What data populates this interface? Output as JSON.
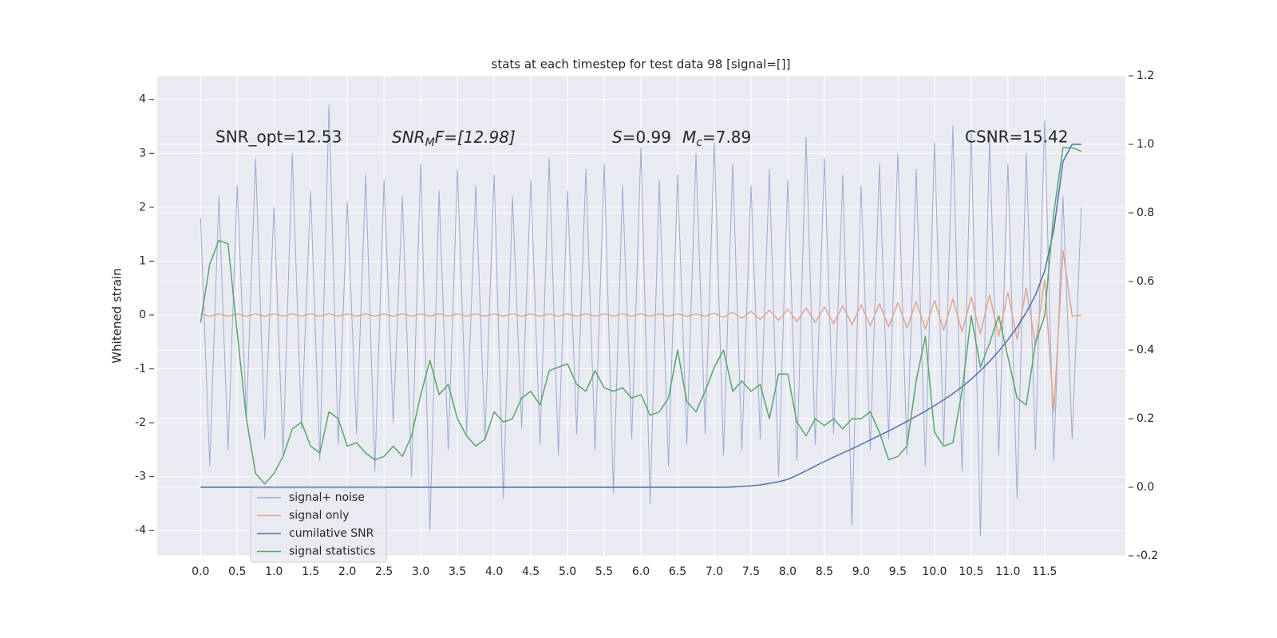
{
  "chart_data": {
    "type": "line",
    "title": "stats at each timestep for test data 98 [signal=[]]",
    "ylabel": "Whitened strain",
    "grid": true,
    "legend_loc": "lower left",
    "x": [
      0,
      0.125,
      0.25,
      0.375,
      0.5,
      0.625,
      0.75,
      0.875,
      1,
      1.125,
      1.25,
      1.375,
      1.5,
      1.625,
      1.75,
      1.875,
      2,
      2.125,
      2.25,
      2.375,
      2.5,
      2.625,
      2.75,
      2.875,
      3,
      3.125,
      3.25,
      3.375,
      3.5,
      3.625,
      3.75,
      3.875,
      4,
      4.125,
      4.25,
      4.375,
      4.5,
      4.625,
      4.75,
      4.875,
      5,
      5.125,
      5.25,
      5.375,
      5.5,
      5.625,
      5.75,
      5.875,
      6,
      6.125,
      6.25,
      6.375,
      6.5,
      6.625,
      6.75,
      6.875,
      7,
      7.125,
      7.25,
      7.375,
      7.5,
      7.625,
      7.75,
      7.875,
      8,
      8.125,
      8.25,
      8.375,
      8.5,
      8.625,
      8.75,
      8.875,
      9,
      9.125,
      9.25,
      9.375,
      9.5,
      9.625,
      9.75,
      9.875,
      10,
      10.125,
      10.25,
      10.375,
      10.5,
      10.625,
      10.75,
      10.875,
      11,
      11.125,
      11.25,
      11.375,
      11.5,
      11.625,
      11.75,
      11.875,
      12
    ],
    "xlim": [
      -0.59,
      12.6
    ],
    "xticks": [
      {
        "value": 0,
        "label": "0.0"
      },
      0.5,
      {
        "value": 1,
        "label": "1.0"
      },
      1.5,
      {
        "value": 2,
        "label": "2.0"
      },
      2.5,
      {
        "value": 3,
        "label": "3.0"
      },
      3.5,
      {
        "value": 4,
        "label": "4.0"
      },
      4.5,
      {
        "value": 5,
        "label": "5.0"
      },
      5.5,
      {
        "value": 6,
        "label": "6.0"
      },
      6.5,
      {
        "value": 7,
        "label": "7.0"
      },
      7.5,
      {
        "value": 8,
        "label": "8.0"
      },
      8.5,
      {
        "value": 9,
        "label": "9.0"
      },
      9.5,
      {
        "value": 10,
        "label": "10.0"
      },
      10.5,
      {
        "value": 11,
        "label": "11.0"
      },
      11.5
    ],
    "ylim": [
      -4.47,
      4.44
    ],
    "yticks": [
      -4,
      -3,
      -2,
      -1,
      0,
      1,
      2,
      3,
      4
    ],
    "y2lim": [
      -0.2,
      1.2
    ],
    "y2ticks": [
      -0.2,
      {
        "value": 0,
        "label": "0.0"
      },
      0.2,
      0.4,
      0.6,
      0.8,
      {
        "value": 1,
        "label": "1.0"
      },
      1.2
    ],
    "series": [
      {
        "name": "signal+ noise",
        "color": "#9aabd1",
        "values": [
          1.8,
          -2.8,
          2.2,
          -2.5,
          2.4,
          -1.9,
          2.9,
          -2.3,
          2.0,
          -2.6,
          3.0,
          -2.1,
          2.3,
          -2.7,
          3.9,
          -2.4,
          2.1,
          -2.2,
          2.6,
          -2.9,
          2.5,
          -2.0,
          2.2,
          -3.0,
          2.8,
          -4.0,
          2.3,
          -2.5,
          2.7,
          -2.2,
          2.4,
          -2.3,
          2.6,
          -3.4,
          2.2,
          -2.1,
          2.5,
          -2.4,
          2.9,
          -2.6,
          2.3,
          -2.2,
          2.7,
          -2.5,
          2.8,
          -3.3,
          2.4,
          -2.3,
          3.1,
          -3.5,
          2.5,
          -2.8,
          2.6,
          -2.4,
          3.0,
          -2.2,
          3.2,
          -2.6,
          2.8,
          -2.5,
          2.4,
          -2.3,
          2.7,
          -3.0,
          2.5,
          -2.7,
          3.3,
          -2.4,
          2.9,
          -2.2,
          2.6,
          -3.9,
          2.4,
          -2.5,
          2.8,
          -2.3,
          3.0,
          -2.6,
          2.7,
          -2.8,
          3.2,
          -2.4,
          3.5,
          -2.9,
          3.4,
          -4.1,
          3.3,
          -2.6,
          2.8,
          -3.4,
          3.0,
          -2.5,
          3.6,
          -2.7,
          2.2,
          -2.3,
          2.0
        ]
      },
      {
        "name": "signal only",
        "color": "#e0a58e",
        "values": [
          0.02,
          -0.02,
          0.02,
          -0.02,
          0.02,
          -0.02,
          0.02,
          -0.02,
          0.02,
          -0.02,
          0.02,
          -0.02,
          0.02,
          -0.02,
          0.02,
          -0.02,
          0.02,
          -0.02,
          0.02,
          -0.02,
          0.02,
          -0.02,
          0.02,
          -0.02,
          0.02,
          -0.02,
          0.02,
          -0.02,
          0.02,
          -0.02,
          0.02,
          -0.02,
          0.02,
          -0.02,
          0.02,
          -0.02,
          0.02,
          -0.02,
          0.02,
          -0.02,
          0.02,
          -0.02,
          0.02,
          -0.02,
          0.02,
          -0.02,
          0.02,
          -0.02,
          0.02,
          -0.02,
          0.02,
          -0.02,
          0.02,
          -0.02,
          0.02,
          -0.02,
          0.03,
          -0.04,
          0.05,
          -0.06,
          0.07,
          -0.08,
          0.09,
          -0.1,
          0.11,
          -0.12,
          0.13,
          -0.14,
          0.15,
          -0.16,
          0.17,
          -0.18,
          0.19,
          -0.2,
          0.21,
          -0.22,
          0.23,
          -0.24,
          0.25,
          -0.26,
          0.27,
          -0.28,
          0.3,
          -0.31,
          0.33,
          -0.35,
          0.37,
          -0.39,
          0.42,
          -0.45,
          0.5,
          -0.56,
          0.65,
          -1.8,
          1.2,
          -0.02,
          0
        ]
      },
      {
        "name": "cumilative SNR",
        "color": "#4c72b0",
        "axis": "y2",
        "values": [
          0,
          0,
          0,
          0,
          0,
          0,
          0,
          0,
          0,
          0,
          0,
          0,
          0,
          0,
          0,
          0,
          0,
          0,
          0,
          0,
          0,
          0,
          0,
          0,
          0,
          0,
          0,
          0,
          0,
          0,
          0,
          0,
          0,
          0,
          0,
          0,
          0,
          0,
          0,
          0,
          0,
          0,
          0,
          0,
          0,
          0,
          0,
          0,
          0,
          0,
          0,
          0,
          0,
          0,
          0,
          0,
          0,
          0,
          0.001,
          0.002,
          0.004,
          0.007,
          0.011,
          0.016,
          0.023,
          0.035,
          0.048,
          0.062,
          0.075,
          0.088,
          0.1,
          0.112,
          0.125,
          0.138,
          0.151,
          0.164,
          0.178,
          0.192,
          0.207,
          0.222,
          0.238,
          0.255,
          0.273,
          0.293,
          0.315,
          0.34,
          0.367,
          0.397,
          0.43,
          0.467,
          0.51,
          0.56,
          0.63,
          0.75,
          0.95,
          1.0,
          1.0
        ]
      },
      {
        "name": "signal statistics",
        "color": "#55a868",
        "axis": "y2",
        "values": [
          0.48,
          0.65,
          0.72,
          0.71,
          0.45,
          0.2,
          0.04,
          0.01,
          0.04,
          0.09,
          0.17,
          0.19,
          0.12,
          0.1,
          0.22,
          0.2,
          0.12,
          0.13,
          0.1,
          0.08,
          0.09,
          0.12,
          0.09,
          0.15,
          0.27,
          0.37,
          0.27,
          0.3,
          0.2,
          0.15,
          0.12,
          0.14,
          0.22,
          0.19,
          0.2,
          0.26,
          0.28,
          0.24,
          0.34,
          0.35,
          0.36,
          0.3,
          0.28,
          0.34,
          0.29,
          0.28,
          0.29,
          0.26,
          0.27,
          0.21,
          0.22,
          0.26,
          0.4,
          0.25,
          0.22,
          0.28,
          0.35,
          0.4,
          0.28,
          0.31,
          0.28,
          0.3,
          0.2,
          0.33,
          0.33,
          0.19,
          0.15,
          0.2,
          0.18,
          0.2,
          0.17,
          0.2,
          0.2,
          0.22,
          0.16,
          0.08,
          0.09,
          0.12,
          0.31,
          0.44,
          0.16,
          0.12,
          0.13,
          0.28,
          0.5,
          0.35,
          0.42,
          0.5,
          0.38,
          0.26,
          0.24,
          0.42,
          0.5,
          0.8,
          0.99,
          0.99,
          0.98
        ]
      }
    ],
    "annotations": [
      "SNR_opt=12.53",
      [
        "SNR",
        "M",
        "F=[12.98]"
      ],
      [
        "S",
        "=0.99",
        "M",
        "c",
        "=7.89"
      ],
      "CSNR=15.42"
    ]
  }
}
